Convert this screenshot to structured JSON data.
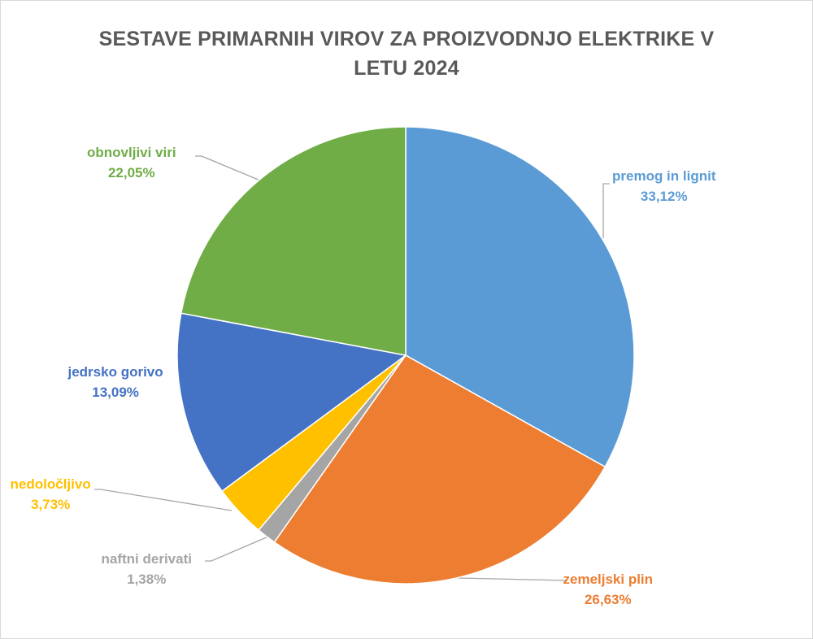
{
  "chart_data": {
    "type": "pie",
    "title": "SESTAVE PRIMARNIH VIROV ZA PROIZVODNJO ELEKTRIKE V LETU 2024",
    "slices": [
      {
        "name": "premog in lignit",
        "value": 33.12,
        "label": "33,12%",
        "color": "#5b9bd5"
      },
      {
        "name": "zemeljski plin",
        "value": 26.63,
        "label": "26,63%",
        "color": "#ed7d31"
      },
      {
        "name": "naftni derivati",
        "value": 1.38,
        "label": "1,38%",
        "color": "#a5a5a5"
      },
      {
        "name": "nedoločljivo",
        "value": 3.73,
        "label": "3,73%",
        "color": "#ffc000"
      },
      {
        "name": "jedrsko gorivo",
        "value": 13.09,
        "label": "13,09%",
        "color": "#4472c4"
      },
      {
        "name": "obnovljivi viri",
        "value": 22.05,
        "label": "22,05%",
        "color": "#70ad47"
      }
    ]
  }
}
